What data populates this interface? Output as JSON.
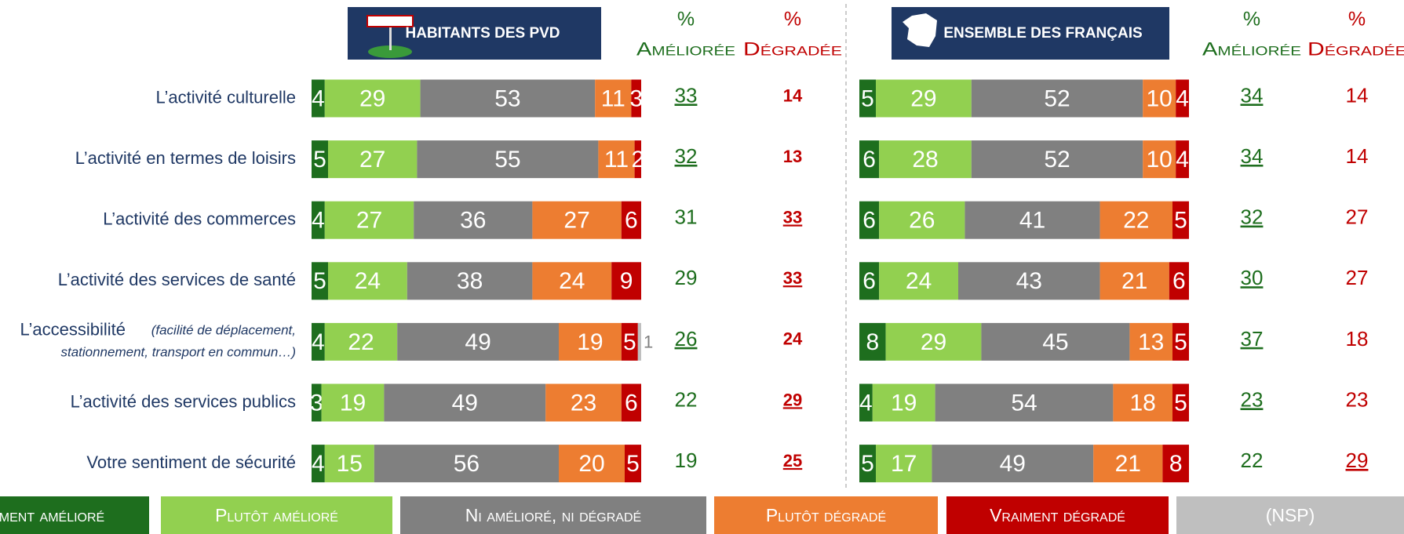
{
  "chart_data": [
    {
      "type": "bar",
      "orientation": "horizontal",
      "stacked": true,
      "title": "HABITANTS DES PVD",
      "categories": [
        "L’activité culturelle",
        "L’activité en termes de loisirs",
        "L’activité des commerces",
        "L’activité des services de santé",
        "L’accessibilité",
        "L’activité des services publics",
        "Votre sentiment de sécurité"
      ],
      "category_note": [
        "(facilité de déplacement,",
        "stationnement, transport en commun…)"
      ],
      "xlim": [
        0,
        100
      ],
      "series": [
        {
          "name": "Vraiment amélioré",
          "color": "#1e6e1e",
          "values": [
            4,
            5,
            4,
            5,
            4,
            3,
            4
          ]
        },
        {
          "name": "Plutôt amélioré",
          "color": "#92d050",
          "values": [
            29,
            27,
            27,
            24,
            22,
            19,
            15
          ]
        },
        {
          "name": "Ni amélioré, ni dégradé",
          "color": "#808080",
          "values": [
            53,
            55,
            36,
            38,
            49,
            49,
            56
          ]
        },
        {
          "name": "Plutôt dégradé",
          "color": "#ed7d31",
          "values": [
            11,
            11,
            27,
            24,
            19,
            23,
            20
          ]
        },
        {
          "name": "Vraiment dégradé",
          "color": "#c00000",
          "values": [
            3,
            2,
            6,
            9,
            5,
            6,
            5
          ]
        },
        {
          "name": "(NSP)",
          "color": "#bfbfbf",
          "values": [
            null,
            null,
            null,
            null,
            1,
            null,
            null
          ]
        }
      ],
      "columns": [
        {
          "symbol": "%",
          "label": "Améliorée",
          "color": "#1e6e1e",
          "bold": false,
          "values": [
            33,
            32,
            31,
            29,
            26,
            22,
            19
          ],
          "underlined": [
            true,
            true,
            false,
            false,
            true,
            false,
            false
          ]
        },
        {
          "symbol": "%",
          "label": "Dégradée",
          "color": "#c00000",
          "bold": true,
          "values": [
            14,
            13,
            33,
            33,
            24,
            29,
            25
          ],
          "underlined": [
            false,
            false,
            true,
            true,
            false,
            true,
            true
          ]
        }
      ]
    },
    {
      "type": "bar",
      "orientation": "horizontal",
      "stacked": true,
      "title": "ENSEMBLE DES FRANÇAIS",
      "xlim": [
        0,
        100
      ],
      "series": [
        {
          "color": "#1e6e1e",
          "values": [
            5,
            6,
            6,
            6,
            8,
            4,
            5
          ]
        },
        {
          "color": "#92d050",
          "values": [
            29,
            28,
            26,
            24,
            29,
            19,
            17
          ]
        },
        {
          "color": "#808080",
          "values": [
            52,
            52,
            41,
            43,
            45,
            54,
            49
          ]
        },
        {
          "color": "#ed7d31",
          "values": [
            10,
            10,
            22,
            21,
            13,
            18,
            21
          ]
        },
        {
          "color": "#c00000",
          "values": [
            4,
            4,
            5,
            6,
            5,
            5,
            8
          ]
        }
      ],
      "columns": [
        {
          "symbol": "%",
          "label": "Améliorée",
          "color": "#1e6e1e",
          "bold": false,
          "values": [
            34,
            34,
            32,
            30,
            37,
            23,
            22
          ],
          "underlined": [
            true,
            true,
            true,
            true,
            true,
            true,
            false
          ]
        },
        {
          "symbol": "%",
          "label": "Dégradée",
          "color": "#c00000",
          "bold": false,
          "values": [
            14,
            14,
            27,
            27,
            18,
            23,
            29
          ],
          "underlined": [
            false,
            false,
            false,
            false,
            false,
            false,
            true
          ]
        }
      ]
    }
  ]
}
